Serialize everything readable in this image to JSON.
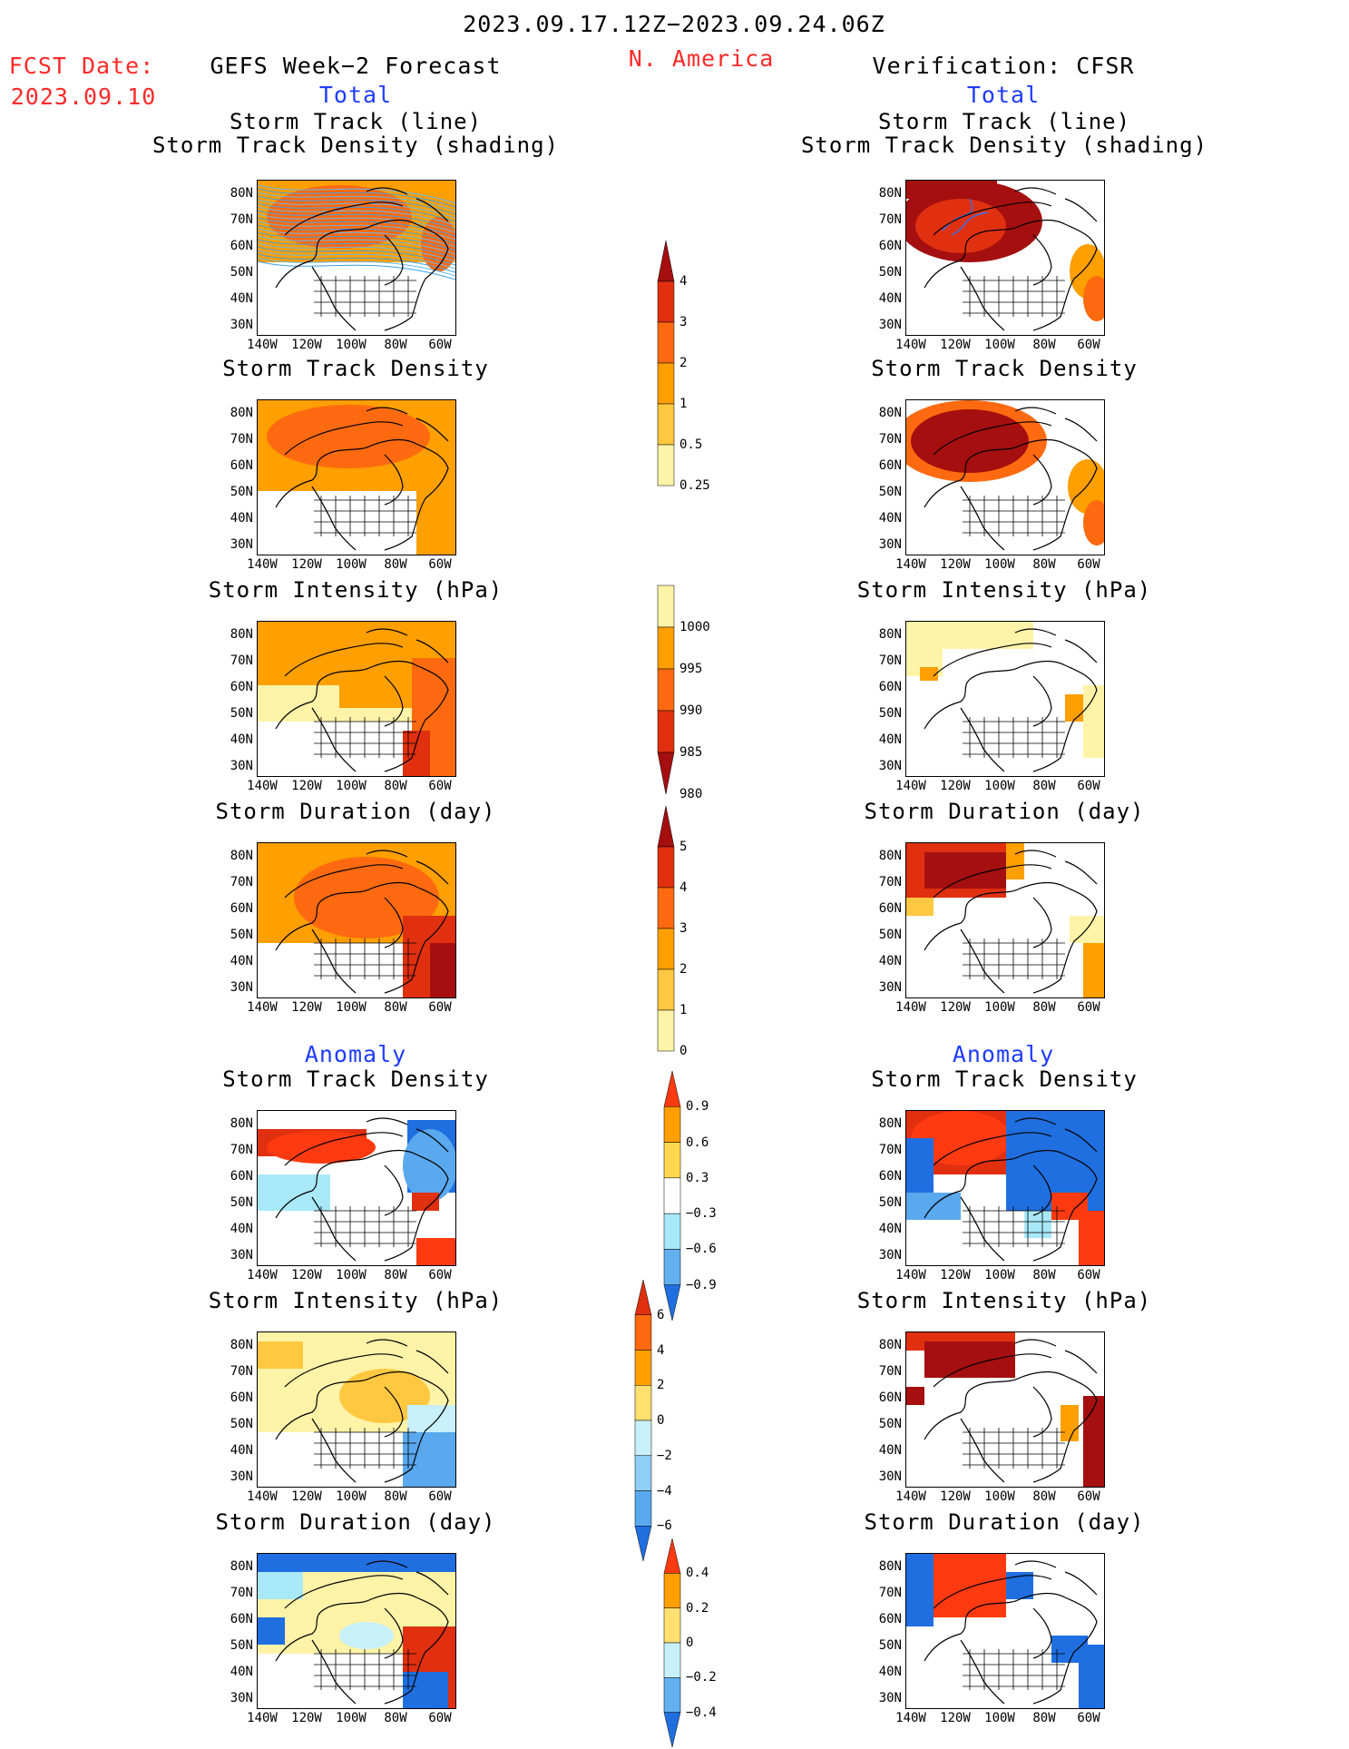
{
  "header": {
    "date_range": "2023.09.17.12Z−2023.09.24.06Z",
    "fcst_label": "FCST Date:",
    "fcst_date": "2023.09.10",
    "left_title": "GEFS Week−2 Forecast",
    "region": "N. America",
    "right_title": "Verification: CFSR"
  },
  "sections": {
    "total": "Total",
    "anomaly": "Anomaly"
  },
  "panel_titles": {
    "track_line": "Storm Track (line)",
    "track_shading": "Storm Track Density (shading)",
    "density": "Storm Track Density",
    "intensity": "Storm Intensity (hPa)",
    "duration": "Storm Duration (day)"
  },
  "axes": {
    "lat_labels": [
      "80N",
      "70N",
      "60N",
      "50N",
      "40N",
      "30N"
    ],
    "lon_labels": [
      "140W",
      "120W",
      "100W",
      "80W",
      "60W"
    ]
  },
  "colorbars": {
    "total_density": {
      "labels": [
        "4",
        "3",
        "2",
        "1",
        "0.5",
        "0.25"
      ],
      "colors": [
        "#a50f0f",
        "#e03010",
        "#ff6a10",
        "#ff9f00",
        "#ffc840",
        "#fff3a8"
      ]
    },
    "total_intensity": {
      "labels": [
        "1000",
        "995",
        "990",
        "985",
        "980"
      ],
      "colors": [
        "#fff3a8",
        "#ff9f00",
        "#ff6a10",
        "#e03010",
        "#a50f0f"
      ]
    },
    "total_duration": {
      "labels": [
        "5",
        "4",
        "3",
        "2",
        "1",
        "0"
      ],
      "colors": [
        "#a50f0f",
        "#e03010",
        "#ff6a10",
        "#ff9f00",
        "#ffc840",
        "#fff3a8"
      ]
    },
    "anom_density": {
      "labels": [
        "0.9",
        "0.6",
        "0.3",
        "−0.3",
        "−0.6",
        "−0.9"
      ],
      "colors": [
        "#ff3a10",
        "#ff9f00",
        "#ffd850",
        "#ffffff",
        "#a8e8f8",
        "#62b0f0",
        "#1f6fe0"
      ]
    },
    "anom_intensity": {
      "labels": [
        "6",
        "4",
        "2",
        "0",
        "−2",
        "−4",
        "−6"
      ],
      "colors": [
        "#e03010",
        "#ff6a10",
        "#ff9f00",
        "#ffe070",
        "#c8f0fa",
        "#90cff5",
        "#5aa8ee",
        "#1f6fe0"
      ]
    },
    "anom_duration": {
      "labels": [
        "0.4",
        "0.2",
        "0",
        "−0.2",
        "−0.4"
      ],
      "colors": [
        "#ff3a10",
        "#ff9f00",
        "#ffe070",
        "#c8f0fa",
        "#62b0f0",
        "#1f6fe0"
      ]
    }
  }
}
